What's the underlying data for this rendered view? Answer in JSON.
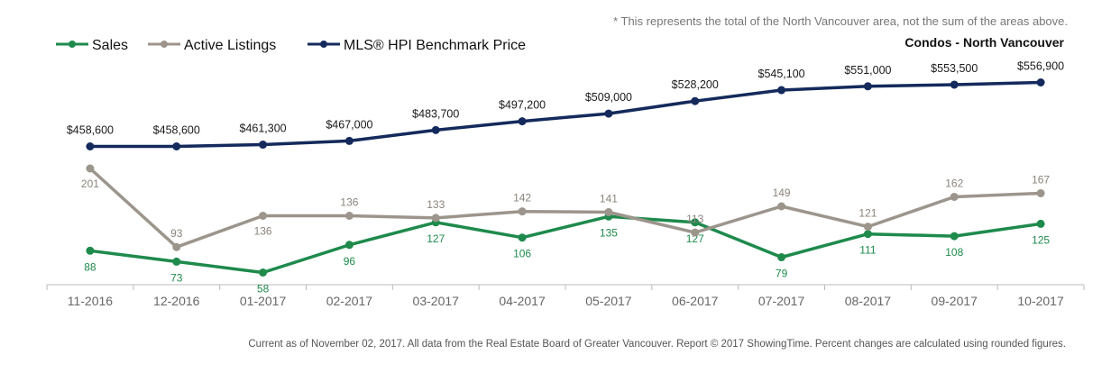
{
  "note": "* This represents the total of the North Vancouver area, not the sum of the areas above.",
  "subtitle": "Condos - North Vancouver",
  "footer": "Current as of November 02, 2017. All data from the Real Estate Board of Greater Vancouver. Report © 2017 ShowingTime. Percent changes are calculated using rounded figures.",
  "chart_data": {
    "type": "line",
    "title": "Condos - North Vancouver",
    "xlabel": "",
    "ylabel": "",
    "legend_position": "top-left",
    "grid": false,
    "categories": [
      "11-2016",
      "12-2016",
      "01-2017",
      "02-2017",
      "03-2017",
      "04-2017",
      "05-2017",
      "06-2017",
      "07-2017",
      "08-2017",
      "09-2017",
      "10-2017"
    ],
    "series": [
      {
        "name": "Sales",
        "color": "#1e8a4c",
        "values": [
          88,
          73,
          58,
          96,
          127,
          106,
          135,
          127,
          79,
          111,
          108,
          125
        ],
        "label_position": "below"
      },
      {
        "name": "Active Listings",
        "color": "#9c958c",
        "values": [
          201,
          93,
          136,
          136,
          133,
          142,
          141,
          113,
          149,
          121,
          162,
          167
        ],
        "label_position": "above"
      },
      {
        "name": "MLS® HPI Benchmark Price",
        "color": "#142a5c",
        "values": [
          458600,
          458600,
          461300,
          467000,
          483700,
          497200,
          509000,
          528200,
          545100,
          551000,
          553500,
          556900
        ],
        "labels": [
          "$458,600",
          "$458,600",
          "$461,300",
          "$467,000",
          "$483,700",
          "$497,200",
          "$509,000",
          "$528,200",
          "$545,100",
          "$551,000",
          "$553,500",
          "$556,900"
        ],
        "label_position": "above"
      }
    ]
  }
}
